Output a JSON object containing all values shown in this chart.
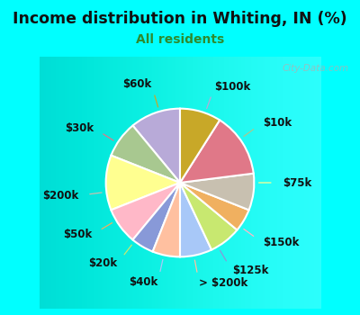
{
  "title": "Income distribution in Whiting, IN (%)",
  "subtitle": "All residents",
  "title_color": "#111111",
  "subtitle_color": "#2e8b2e",
  "background_color": "#00ffff",
  "chart_bg_start": "#f0faf0",
  "chart_bg_end": "#e0f0e8",
  "watermark": "City-Data.com",
  "labels": [
    "$100k",
    "$10k",
    "$75k",
    "$150k",
    "$125k",
    "> $200k",
    "$40k",
    "$20k",
    "$50k",
    "$200k",
    "$30k",
    "$60k"
  ],
  "values": [
    11,
    8,
    12,
    8,
    5,
    6,
    7,
    7,
    5,
    8,
    14,
    9
  ],
  "colors": [
    "#b8aad8",
    "#a8c890",
    "#ffff90",
    "#ffb8c8",
    "#8899d8",
    "#ffc0a0",
    "#a8c8f8",
    "#c8e870",
    "#f0b060",
    "#c8c0b0",
    "#e07888",
    "#c8a828"
  ],
  "label_fontsize": 8.5,
  "startangle": 90,
  "figsize": [
    4.0,
    3.5
  ],
  "dpi": 100
}
